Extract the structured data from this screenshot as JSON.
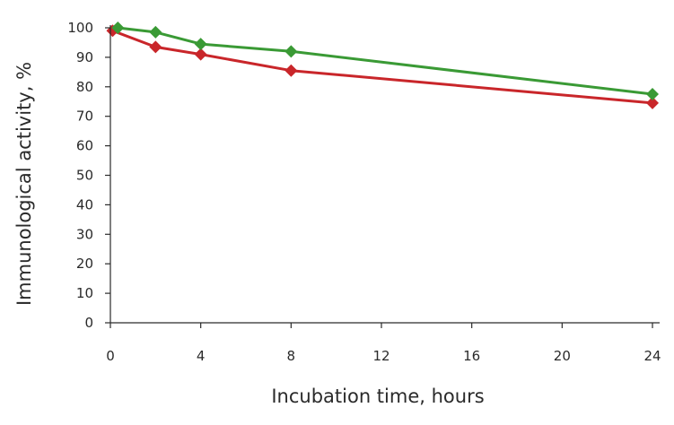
{
  "chart_data": {
    "type": "line",
    "xlabel": "Incubation time, hours",
    "ylabel": "Immunological activity, %",
    "xlim": [
      0,
      24
    ],
    "ylim": [
      0,
      100
    ],
    "x_ticks": [
      0,
      4,
      8,
      12,
      16,
      20,
      24
    ],
    "y_ticks": [
      0,
      10,
      20,
      30,
      40,
      50,
      60,
      70,
      80,
      90,
      100
    ],
    "grid": false,
    "marker": "diamond",
    "series": [
      {
        "color": "#3a9a35",
        "x": [
          0.33,
          2,
          4,
          8,
          24
        ],
        "y": [
          100,
          98.5,
          94.5,
          92,
          77.5
        ]
      },
      {
        "color": "#c9262a",
        "x": [
          0.1,
          2,
          4,
          8,
          24
        ],
        "y": [
          99,
          93.5,
          91,
          85.5,
          74.5
        ]
      }
    ]
  }
}
